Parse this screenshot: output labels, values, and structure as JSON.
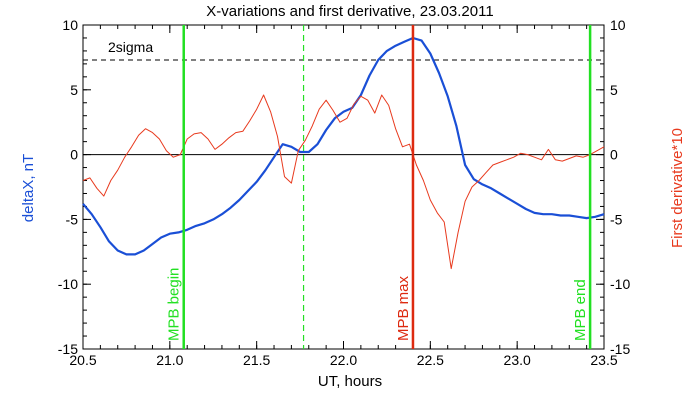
{
  "chart_data": {
    "type": "line",
    "title": "X-variations and first derivative, 23.03.2011",
    "xlabel": "UT, hours",
    "ylabel_left": "deltaX, nT",
    "ylabel_right": "First derivative*10",
    "xlim": [
      20.5,
      23.5
    ],
    "ylim": [
      -15,
      10
    ],
    "x_ticks": [
      20.5,
      21.0,
      21.5,
      22.0,
      22.5,
      23.0,
      23.5
    ],
    "x_tick_labels": [
      "20.5",
      "21.0",
      "21.5",
      "22.0",
      "22.5",
      "23.0",
      "23.5"
    ],
    "y_ticks": [
      -15,
      -10,
      -5,
      0,
      5,
      10
    ],
    "y_tick_labels": [
      "-15",
      "-10",
      "-5",
      "0",
      "5",
      "10"
    ],
    "grid": false,
    "colors": {
      "deltaX": "#1a4fd6",
      "derivative": "#e83a1e",
      "mpb_edge": "#22e022",
      "mpb_max": "#dd2a10",
      "axes": "#000000"
    },
    "threshold": {
      "label": "2sigma",
      "value": 7.3
    },
    "zero_line": 0,
    "mid_marker_x": 21.77,
    "markers": [
      {
        "x": 21.08,
        "label": "MPB begin",
        "color": "#22e022"
      },
      {
        "x": 22.4,
        "label": "MPB max",
        "color": "#dd2a10"
      },
      {
        "x": 23.42,
        "label": "MPB end",
        "color": "#22e022"
      }
    ],
    "series": [
      {
        "key": "deltaX",
        "x": [
          20.5,
          20.55,
          20.6,
          20.65,
          20.7,
          20.75,
          20.8,
          20.85,
          20.9,
          20.95,
          21.0,
          21.05,
          21.1,
          21.15,
          21.2,
          21.25,
          21.3,
          21.35,
          21.4,
          21.45,
          21.5,
          21.55,
          21.6,
          21.65,
          21.7,
          21.75,
          21.8,
          21.85,
          21.9,
          21.95,
          22.0,
          22.05,
          22.1,
          22.15,
          22.2,
          22.25,
          22.3,
          22.35,
          22.4,
          22.45,
          22.5,
          22.55,
          22.6,
          22.65,
          22.7,
          22.75,
          22.8,
          22.85,
          22.9,
          22.95,
          23.0,
          23.05,
          23.1,
          23.15,
          23.2,
          23.25,
          23.3,
          23.35,
          23.4,
          23.45,
          23.5
        ],
        "values": [
          -3.8,
          -4.6,
          -5.6,
          -6.7,
          -7.4,
          -7.7,
          -7.7,
          -7.4,
          -6.9,
          -6.4,
          -6.1,
          -6.0,
          -5.8,
          -5.5,
          -5.3,
          -5.0,
          -4.6,
          -4.1,
          -3.5,
          -2.8,
          -2.1,
          -1.2,
          -0.2,
          0.8,
          0.6,
          0.2,
          0.2,
          0.8,
          1.9,
          2.8,
          3.3,
          3.6,
          4.6,
          6.1,
          7.3,
          8.0,
          8.4,
          8.7,
          9.0,
          8.8,
          7.8,
          6.3,
          4.5,
          2.2,
          -0.8,
          -1.9,
          -2.3,
          -2.6,
          -3.0,
          -3.4,
          -3.8,
          -4.2,
          -4.5,
          -4.6,
          -4.6,
          -4.7,
          -4.7,
          -4.8,
          -4.9,
          -4.8,
          -4.6
        ]
      },
      {
        "key": "derivative",
        "x": [
          20.5,
          20.54,
          20.58,
          20.62,
          20.66,
          20.7,
          20.74,
          20.78,
          20.82,
          20.86,
          20.9,
          20.94,
          20.98,
          21.02,
          21.06,
          21.1,
          21.14,
          21.18,
          21.22,
          21.26,
          21.3,
          21.34,
          21.38,
          21.42,
          21.46,
          21.5,
          21.54,
          21.58,
          21.62,
          21.66,
          21.7,
          21.74,
          21.78,
          21.82,
          21.86,
          21.9,
          21.94,
          21.98,
          22.02,
          22.06,
          22.1,
          22.14,
          22.18,
          22.22,
          22.26,
          22.3,
          22.34,
          22.38,
          22.42,
          22.46,
          22.5,
          22.54,
          22.58,
          22.62,
          22.66,
          22.7,
          22.74,
          22.78,
          22.82,
          22.86,
          22.9,
          22.94,
          22.98,
          23.02,
          23.06,
          23.1,
          23.14,
          23.18,
          23.22,
          23.26,
          23.3,
          23.34,
          23.38,
          23.42,
          23.46,
          23.5
        ],
        "values": [
          -2.0,
          -1.8,
          -2.6,
          -3.2,
          -2.0,
          -1.2,
          -0.2,
          0.6,
          1.5,
          2.0,
          1.7,
          1.2,
          0.3,
          -0.2,
          0.0,
          1.2,
          1.6,
          1.7,
          1.2,
          0.4,
          0.8,
          1.3,
          1.7,
          1.8,
          2.6,
          3.5,
          4.6,
          3.3,
          1.4,
          -1.7,
          -2.2,
          0.3,
          1.1,
          2.2,
          3.5,
          4.2,
          3.4,
          2.5,
          2.8,
          3.9,
          4.5,
          4.2,
          3.2,
          4.6,
          3.8,
          2.0,
          0.6,
          0.8,
          -0.8,
          -2.0,
          -3.5,
          -4.5,
          -5.2,
          -8.8,
          -6.0,
          -3.6,
          -2.5,
          -2.0,
          -1.4,
          -0.8,
          -0.6,
          -0.4,
          -0.2,
          0.1,
          0.0,
          -0.2,
          -0.4,
          0.4,
          -0.4,
          -0.5,
          -0.3,
          -0.1,
          -0.2,
          0.0,
          0.3,
          0.6
        ]
      }
    ]
  }
}
